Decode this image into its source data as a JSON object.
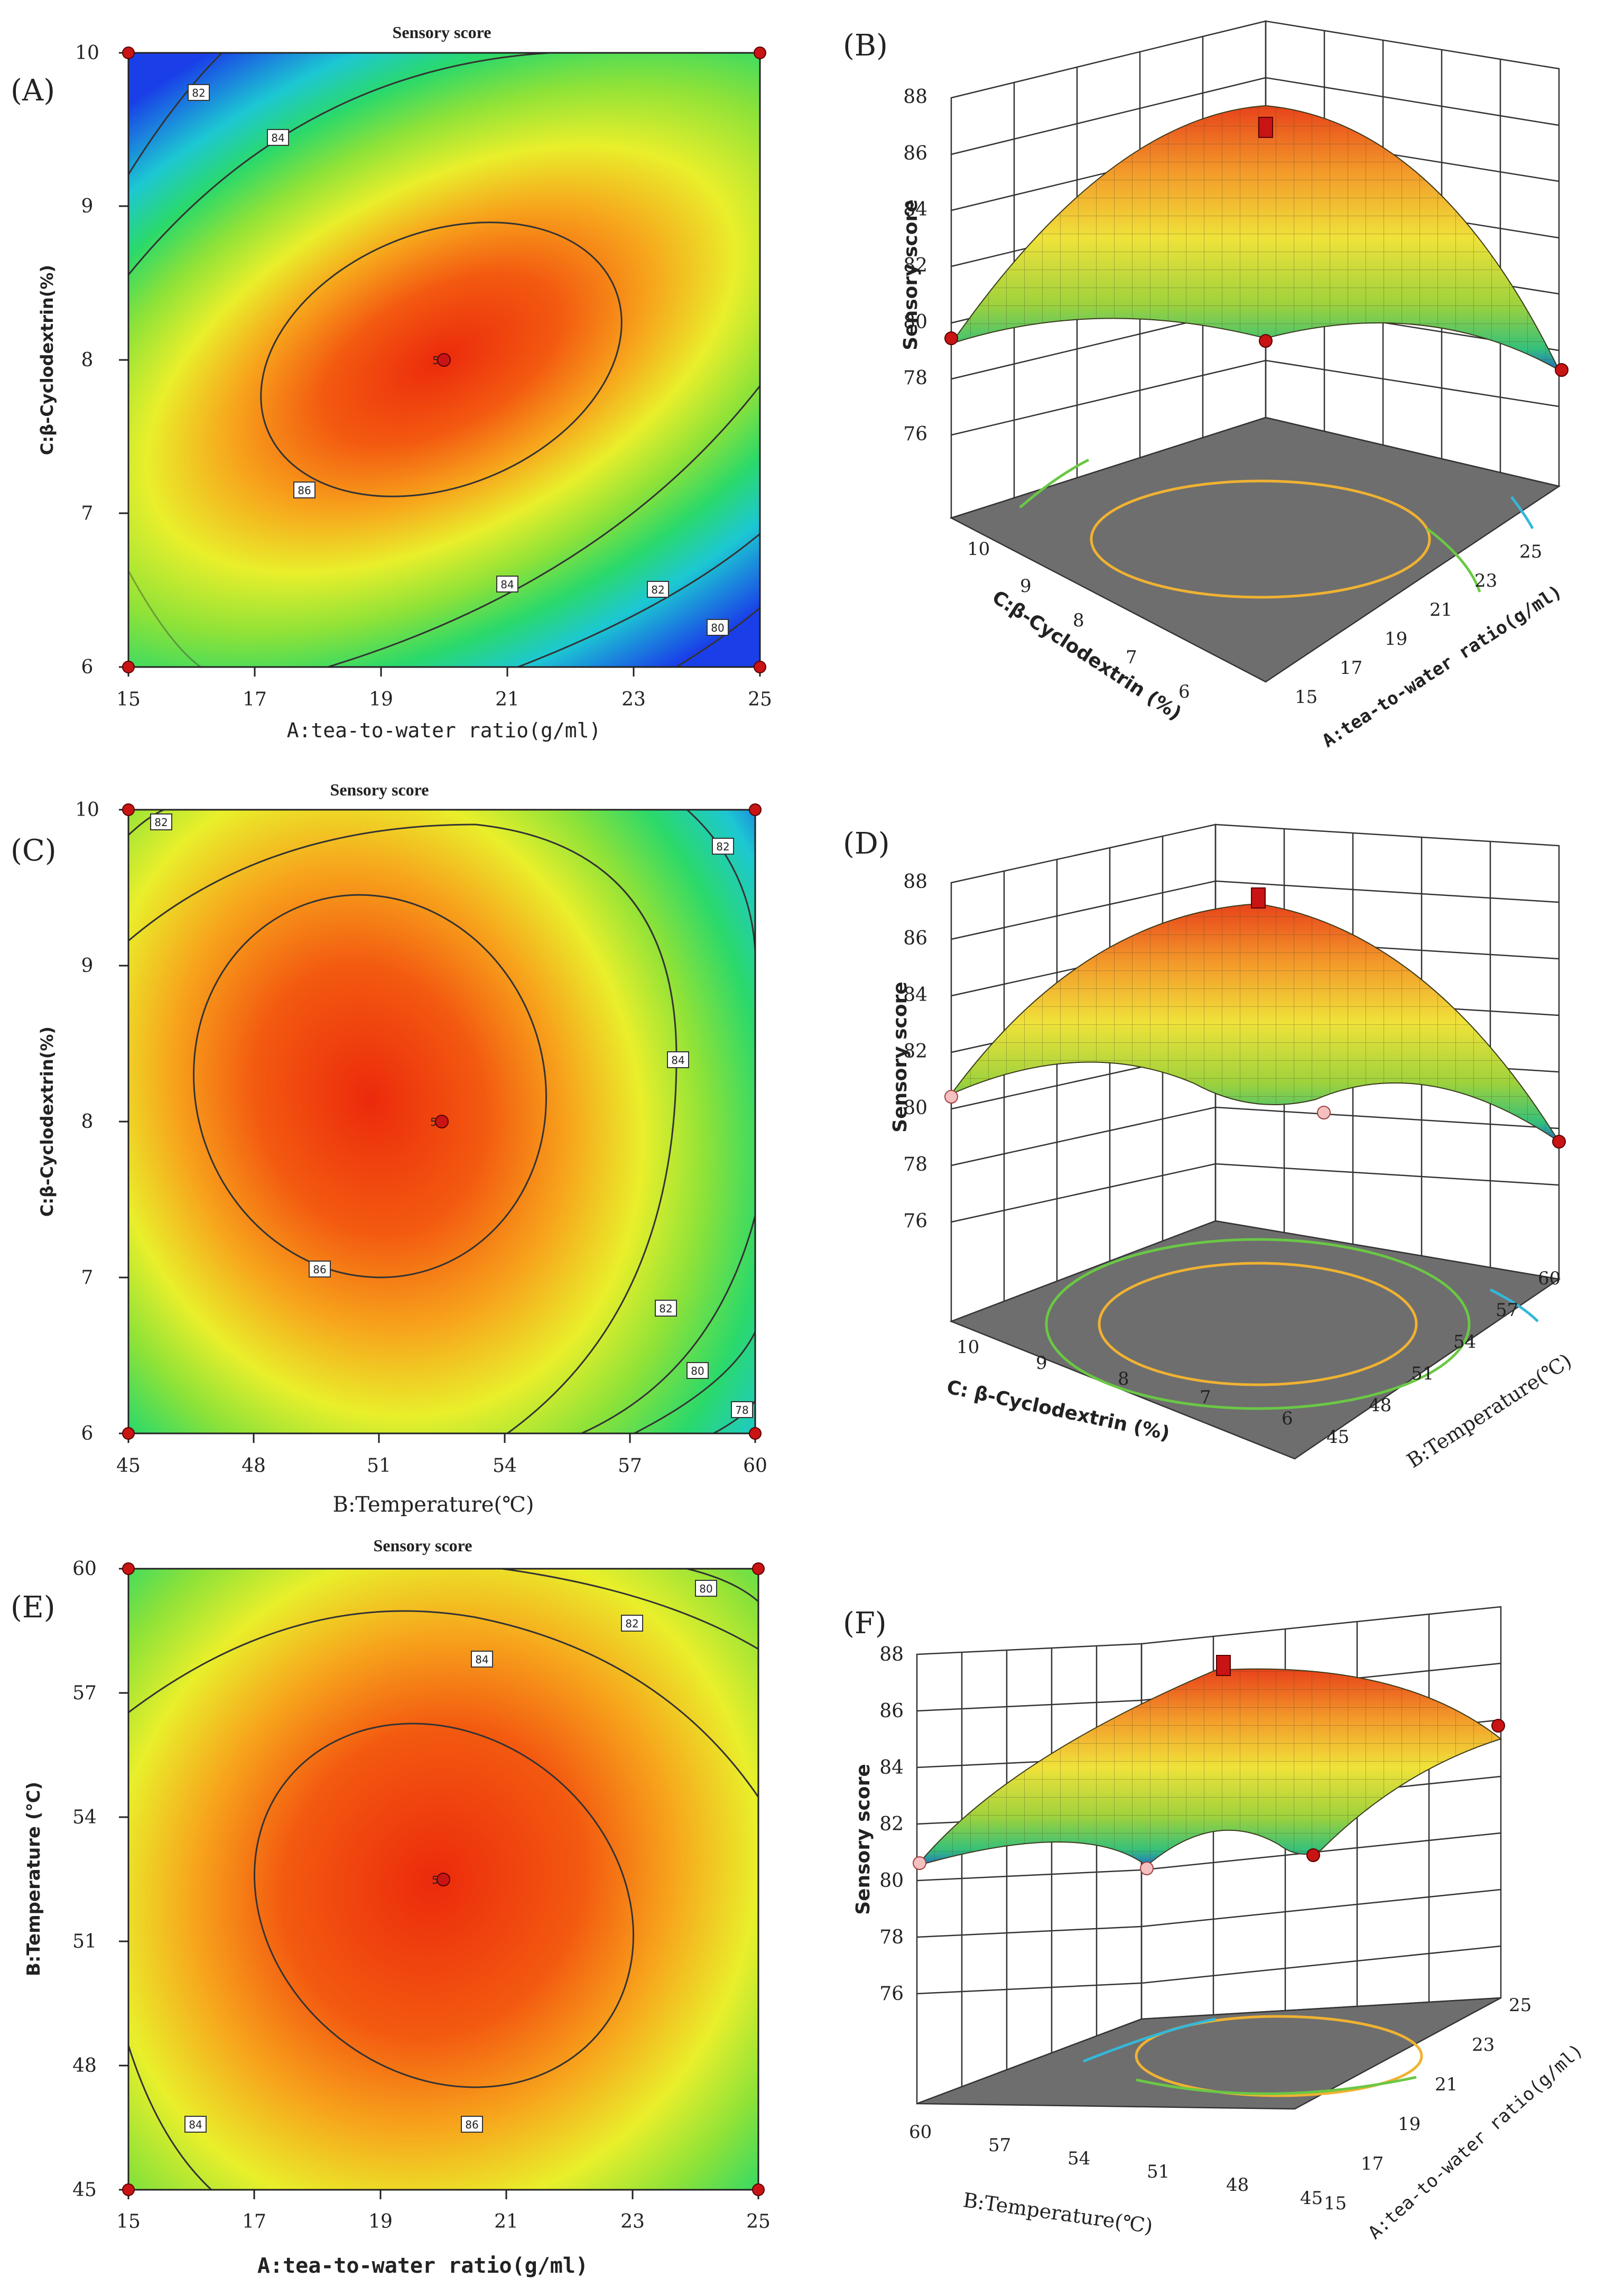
{
  "figure": {
    "panels": [
      {
        "label": "(A)"
      },
      {
        "label": "(B)"
      },
      {
        "label": "(C)"
      },
      {
        "label": "(D)"
      },
      {
        "label": "(E)"
      },
      {
        "label": "(F)"
      }
    ]
  },
  "chart_data": [
    {
      "panel": "(A)",
      "type": "contour",
      "title": "Sensory score",
      "xlabel": "A:tea-to-water ratio(g/ml)",
      "ylabel": "C:β-Cyclodextrin(%)",
      "xlim": [
        15,
        25
      ],
      "ylim": [
        6,
        10
      ],
      "xticks": [
        "15",
        "17",
        "19",
        "21",
        "23",
        "25"
      ],
      "yticks": [
        "6",
        "7",
        "8",
        "9",
        "10"
      ],
      "contours": [
        {
          "level": "82",
          "label_at": [
            16.2,
            9.75
          ]
        },
        {
          "level": "84",
          "label_at": [
            17.3,
            9.45
          ]
        },
        {
          "level": "86",
          "label_at": [
            17.8,
            7.15
          ]
        },
        {
          "level": "84",
          "label_at": [
            21.0,
            6.53
          ]
        },
        {
          "level": "82",
          "label_at": [
            23.0,
            6.5
          ]
        },
        {
          "level": "80",
          "label_at": [
            24.4,
            6.25
          ]
        }
      ],
      "center": {
        "x": 20,
        "y": 8,
        "label": "5"
      },
      "design_points": [
        [
          15,
          10
        ],
        [
          25,
          10
        ],
        [
          15,
          6
        ],
        [
          25,
          6
        ]
      ]
    },
    {
      "panel": "(B)",
      "type": "surface3d",
      "zlabel": "Sensory score",
      "xlabel": "A:tea-to-water ratio(g/ml)",
      "ylabel": "C:β-Cyclodextrin (%)",
      "zticks": [
        "76",
        "78",
        "80",
        "82",
        "84",
        "86",
        "88"
      ],
      "xticks": [
        "15",
        "17",
        "19",
        "21",
        "23",
        "25"
      ],
      "yticks": [
        "6",
        "7",
        "8",
        "9",
        "10"
      ]
    },
    {
      "panel": "(C)",
      "type": "contour",
      "title": "Sensory score",
      "xlabel": "B:Temperature(℃)",
      "ylabel": "C:β-Cyclodextrin(%)",
      "xlim": [
        45,
        60
      ],
      "ylim": [
        6,
        10
      ],
      "xticks": [
        "45",
        "48",
        "51",
        "54",
        "57",
        "60"
      ],
      "yticks": [
        "6",
        "7",
        "8",
        "9",
        "10"
      ],
      "contours": [
        {
          "level": "82",
          "label_at": [
            46.5,
            9.92
          ]
        },
        {
          "level": "82",
          "label_at": [
            58.8,
            9.8
          ]
        },
        {
          "level": "84",
          "label_at": [
            56.9,
            8.4
          ]
        },
        {
          "level": "86",
          "label_at": [
            49.3,
            7.05
          ]
        },
        {
          "level": "82",
          "label_at": [
            57.7,
            6.8
          ]
        },
        {
          "level": "80",
          "label_at": [
            58.5,
            6.4
          ]
        },
        {
          "level": "78",
          "label_at": [
            59.5,
            6.15
          ]
        }
      ],
      "center": {
        "x": 52.5,
        "y": 8,
        "label": "5"
      },
      "design_points": [
        [
          45,
          10
        ],
        [
          60,
          10
        ],
        [
          45,
          6
        ],
        [
          60,
          6
        ]
      ]
    },
    {
      "panel": "(D)",
      "type": "surface3d",
      "zlabel": "Sensory score",
      "xlabel": "B:Temperature(℃)",
      "ylabel": "C: β-Cyclodextrin (%)",
      "zticks": [
        "76",
        "78",
        "80",
        "82",
        "84",
        "86",
        "88"
      ],
      "xticks": [
        "45",
        "48",
        "51",
        "54",
        "57",
        "60"
      ],
      "yticks": [
        "6",
        "7",
        "8",
        "9",
        "10"
      ]
    },
    {
      "panel": "(E)",
      "type": "contour",
      "title": "Sensory score",
      "xlabel": "A:tea-to-water ratio(g/ml)",
      "ylabel": "B:Temperature (℃)",
      "xlim": [
        15,
        25
      ],
      "ylim": [
        45,
        60
      ],
      "xticks": [
        "15",
        "17",
        "19",
        "21",
        "23",
        "25"
      ],
      "yticks": [
        "45",
        "48",
        "51",
        "54",
        "57",
        "60"
      ],
      "contours": [
        {
          "level": "80",
          "label_at": [
            24.2,
            59.6
          ]
        },
        {
          "level": "82",
          "label_at": [
            23.0,
            58.7
          ]
        },
        {
          "level": "84",
          "label_at": [
            19.3,
            58.1
          ]
        },
        {
          "level": "86",
          "label_at": [
            20.0,
            46.9
          ]
        },
        {
          "level": "84",
          "label_at": [
            16.1,
            46.9
          ]
        }
      ],
      "center": {
        "x": 20,
        "y": 52.5,
        "label": "5"
      },
      "design_points": [
        [
          15,
          60
        ],
        [
          25,
          60
        ],
        [
          15,
          45
        ],
        [
          25,
          45
        ]
      ]
    },
    {
      "panel": "(F)",
      "type": "surface3d",
      "zlabel": "Sensory score",
      "xlabel": "A:tea-to-water ratio(g/ml)",
      "ylabel": "B:Temperature(℃)",
      "zticks": [
        "76",
        "78",
        "80",
        "82",
        "84",
        "86",
        "88"
      ],
      "xticks": [
        "15",
        "17",
        "19",
        "21",
        "23",
        "25"
      ],
      "yticks": [
        "45",
        "48",
        "51",
        "54",
        "57",
        "60"
      ]
    }
  ]
}
